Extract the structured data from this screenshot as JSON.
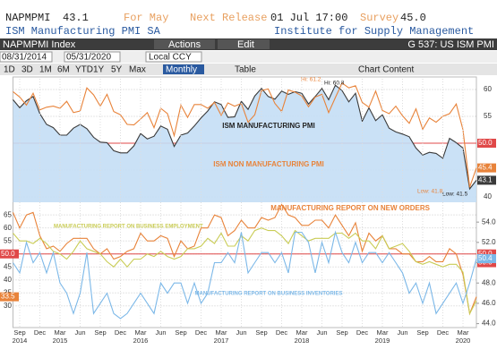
{
  "ui": {
    "ticker": "NAPMPMI",
    "last": "43.1",
    "for_label": "For May",
    "next_label": "Next Release",
    "next_value": "01 Jul 17:00",
    "survey_label": "Survey",
    "survey_value": "45.0",
    "name": "ISM Manufacturing PMI SA",
    "source": "Institute for Supply Management",
    "security": "NAPMPMI Index",
    "actions": "Actions",
    "edit": "Edit",
    "page": "G 537: US ISM PMI",
    "start_date": "08/31/2014",
    "end_date": "05/31/2020",
    "currency": "Local CCY",
    "ranges": [
      "1D",
      "3D",
      "1M",
      "6M",
      "YTD",
      "1Y",
      "5Y",
      "Max"
    ],
    "frequency": "Monthly",
    "table": "Table",
    "chart_content": "Chart Content"
  },
  "chart_data": [
    {
      "type": "line",
      "ylim": [
        39,
        62
      ],
      "yticks": [
        40,
        45,
        50,
        55,
        60
      ],
      "grid": true,
      "reference_line": {
        "value": 50,
        "label": "50.0",
        "color": "#e04848"
      },
      "annotations": [
        "Hi: 61.2",
        "Hi: 60.8",
        "Low: 41.8",
        "Low: 41.5"
      ],
      "series": [
        {
          "name": "ISM MANUFACTURING PMI",
          "color": "#3a3a3a",
          "fill": "#c4def5",
          "last_value_tag": true,
          "values": [
            58.1,
            56.6,
            57.9,
            58.7,
            55.5,
            53.5,
            52.9,
            51.5,
            51.5,
            52.8,
            53.5,
            52.7,
            51.1,
            50.2,
            50.1,
            48.6,
            48.2,
            48.2,
            49.5,
            51.8,
            50.8,
            51.3,
            53.2,
            52.6,
            49.4,
            51.5,
            51.9,
            53.2,
            54.7,
            56.0,
            57.7,
            57.2,
            54.8,
            54.9,
            57.8,
            56.3,
            58.8,
            60.2,
            58.7,
            58.2,
            59.7,
            59.1,
            59.6,
            59.3,
            57.3,
            58.7,
            60.2,
            58.1,
            60.8,
            59.8,
            57.7,
            59.3,
            54.1,
            56.6,
            54.2,
            55.3,
            52.8,
            52.1,
            51.7,
            51.2,
            49.1,
            47.8,
            48.3,
            48.1,
            47.2,
            50.9,
            50.1,
            49.1,
            41.5,
            43.1
          ]
        },
        {
          "name": "ISM NON MANUFACTURING PMI",
          "color": "#e8833a",
          "last_value_tag": true,
          "values": [
            59.6,
            58.6,
            57.1,
            59.3,
            56.2,
            56.7,
            56.9,
            56.5,
            57.8,
            55.7,
            56.0,
            60.3,
            59.0,
            56.9,
            59.1,
            55.9,
            55.3,
            53.5,
            53.4,
            54.5,
            55.7,
            52.9,
            56.5,
            55.5,
            51.4,
            57.1,
            54.8,
            57.2,
            57.2,
            56.5,
            57.6,
            55.2,
            57.5,
            56.9,
            57.4,
            53.9,
            55.3,
            59.8,
            60.1,
            57.4,
            55.9,
            59.9,
            59.5,
            58.8,
            56.8,
            58.6,
            59.1,
            55.7,
            58.5,
            61.2,
            60.3,
            60.7,
            57.6,
            56.7,
            59.7,
            56.1,
            55.5,
            56.9,
            55.1,
            53.7,
            56.4,
            52.6,
            54.7,
            53.9,
            55.0,
            55.5,
            57.3,
            52.5,
            41.8,
            45.4
          ]
        }
      ]
    },
    {
      "type": "line",
      "ylim": [
        22,
        68.5
      ],
      "yticks": [
        30,
        35,
        40,
        45,
        50,
        55,
        60,
        65
      ],
      "y2lim": [
        43.7,
        55.6
      ],
      "y2ticks": [
        {
          "value": 44,
          "label": "44.0"
        },
        {
          "value": 46,
          "label": "46.0"
        },
        {
          "value": 48,
          "label": "48.0"
        },
        {
          "value": 50,
          "label": "50.0"
        },
        {
          "value": 52,
          "label": "52.0"
        },
        {
          "value": 54,
          "label": "54.0"
        }
      ],
      "grid": true,
      "reference_line": {
        "value": 50,
        "label": "50.0",
        "color": "#e04848"
      },
      "categories": [
        null,
        "Sep 2014",
        null,
        null,
        "Dec",
        null,
        null,
        "Mar 2015",
        null,
        null,
        "Jun",
        null,
        null,
        "Sep",
        null,
        null,
        "Dec",
        null,
        null,
        "Mar 2016",
        null,
        null,
        "Jun",
        null,
        null,
        "Sep",
        null,
        null,
        "Dec",
        null,
        null,
        "Mar 2017",
        null,
        null,
        "Jun",
        null,
        null,
        "Sep",
        null,
        null,
        "Dec",
        null,
        null,
        "Mar 2018",
        null,
        null,
        "Jun",
        null,
        null,
        "Sep",
        null,
        null,
        "Dec",
        null,
        null,
        "Mar 2019",
        null,
        null,
        "Jun",
        null,
        null,
        "Sep",
        null,
        null,
        "Dec",
        null,
        null,
        "Mar 2020",
        null,
        null
      ],
      "series": [
        {
          "name": "MANUFACTURING REPORT ON NEW ORDERS",
          "color": "#e8833a",
          "last_value_tag": true,
          "values": [
            66,
            60,
            65,
            66,
            57,
            52,
            53,
            51,
            54,
            56,
            56,
            56,
            52,
            50,
            52,
            48,
            49,
            51,
            52,
            58,
            55,
            55,
            57,
            56,
            49,
            55,
            52,
            53,
            60,
            60,
            65,
            64,
            57,
            59,
            63,
            60,
            60,
            64,
            63,
            64,
            69,
            65,
            64,
            61,
            61,
            63,
            63,
            60,
            65,
            61,
            57,
            62,
            51,
            58,
            55,
            57,
            52,
            52,
            50,
            50,
            47,
            47,
            49,
            47,
            47,
            52,
            50,
            42,
            27,
            33.5
          ]
        },
        {
          "name": "MANUFACTURING REPORT ON BUSINESS EMPLOYMENT",
          "color": "#c9cc55",
          "values": [
            58,
            55,
            55,
            54,
            56,
            54,
            51,
            50,
            48,
            51,
            55,
            52,
            51,
            50,
            47,
            45,
            48,
            45,
            48,
            48,
            50,
            49,
            51,
            49,
            48,
            49,
            52,
            52,
            53,
            56,
            54,
            58,
            53,
            53,
            57,
            55,
            59,
            60,
            59,
            59,
            57,
            54,
            59,
            57,
            55,
            56,
            56,
            56,
            58,
            58,
            56,
            58,
            55,
            55,
            52,
            57,
            52,
            53,
            54,
            51,
            47,
            46,
            47,
            46,
            45,
            46,
            46,
            43,
            27,
            32
          ]
        },
        {
          "name": "MANUFACTURING REPORT ON BUSINESS INVENTORIES",
          "color": "#7cb8e8",
          "axis": "y2",
          "last_value_tag": true,
          "values": [
            50,
            49,
            52,
            50,
            51,
            49,
            51,
            48,
            47,
            45,
            47,
            51,
            45,
            46,
            47,
            45,
            44.5,
            45,
            46,
            47,
            46,
            45,
            48,
            47,
            48,
            48,
            46,
            48,
            46,
            47,
            50,
            50,
            51,
            50,
            53,
            49,
            50,
            51,
            51,
            50,
            51,
            49,
            53,
            53,
            52,
            49,
            52,
            50,
            53,
            51,
            50,
            52,
            50,
            51,
            51,
            50,
            51,
            50,
            49,
            47,
            48,
            46,
            48,
            45,
            46,
            47,
            48,
            46,
            48,
            50.4
          ]
        }
      ]
    }
  ]
}
